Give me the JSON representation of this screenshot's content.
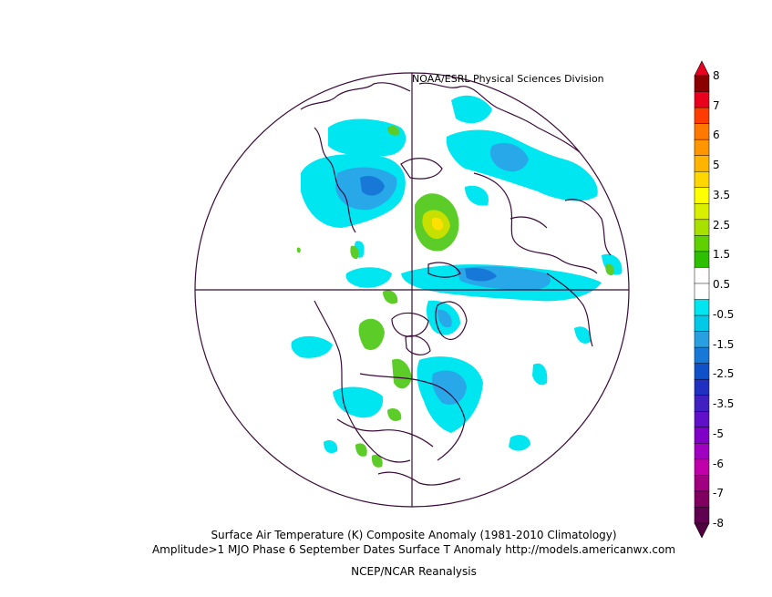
{
  "credit": "NOAA/ESRL Physical Sciences Division",
  "title": "Surface Air Temperature (K) Composite Anomaly (1981-2010 Climatology)",
  "subtitle": "Amplitude>1 MJO Phase 6 September Dates Surface T Anomaly http://models.americanwx.com",
  "source": "NCEP/NCAR Reanalysis",
  "colorbar": {
    "labels": [
      "8",
      "7",
      "6",
      "5",
      "3.5",
      "2.5",
      "1.5",
      "0.5",
      "-0.5",
      "-1.5",
      "-2.5",
      "-3.5",
      "-5",
      "-6",
      "-7",
      "-8"
    ],
    "colors": [
      "#8b0000",
      "#e8001e",
      "#ff3c00",
      "#ff7800",
      "#ff9600",
      "#ffb400",
      "#ffd700",
      "#ffff00",
      "#d8f000",
      "#a8e000",
      "#5fd000",
      "#2cc000",
      "#ffffff",
      "#ffffff",
      "#00e6f0",
      "#00c8e6",
      "#28a0e0",
      "#1878d8",
      "#1050c8",
      "#2030c0",
      "#4020c0",
      "#6010c8",
      "#8000c8",
      "#a000c0",
      "#c000a8",
      "#a00080",
      "#800060",
      "#600050"
    ],
    "top_color": "#e8001e",
    "bottom_color": "#500040"
  },
  "anomaly_colors": {
    "light_blue": "#00e6f0",
    "mid_blue": "#28a8e8",
    "deep_blue": "#1878d8",
    "green": "#5ccc28",
    "yellow_green": "#c8e000",
    "yellow": "#ffe000"
  },
  "line_color": "#3a0a3a"
}
